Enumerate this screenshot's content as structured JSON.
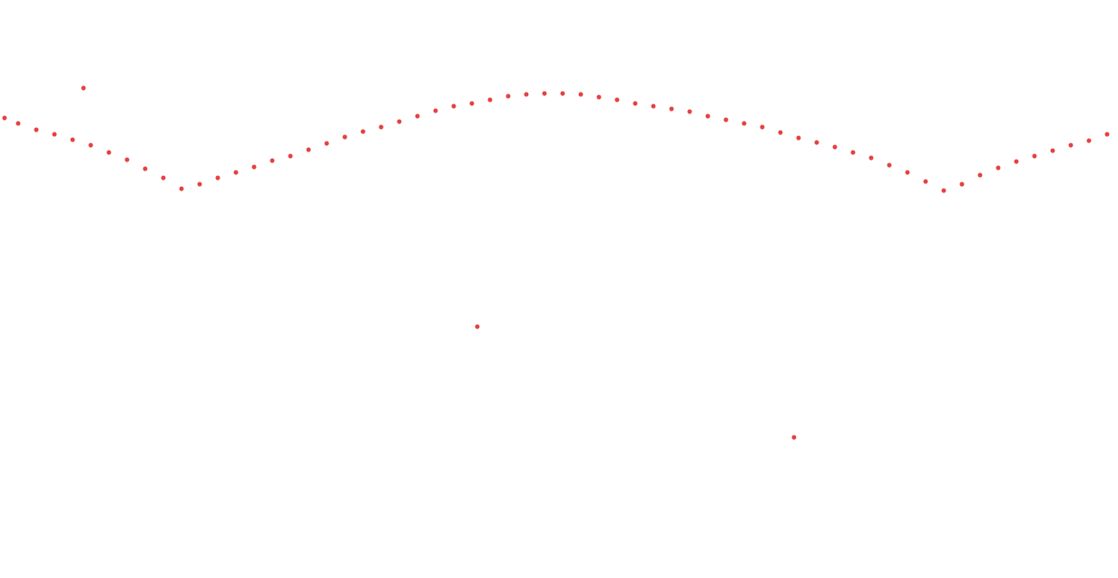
{
  "chart_data": {
    "type": "scatter",
    "color": "#e01010",
    "marker": "circle",
    "x": [
      5,
      20,
      40,
      60,
      80,
      92,
      100,
      120,
      140,
      160,
      180,
      200,
      220,
      240,
      260,
      280,
      300,
      320,
      340,
      360,
      380,
      400,
      420,
      440,
      460,
      480,
      500,
      520,
      526,
      540,
      560,
      580,
      600,
      620,
      640,
      660,
      680,
      700,
      720,
      740,
      760,
      780,
      800,
      820,
      840,
      860,
      875,
      880,
      900,
      920,
      940,
      960,
      980,
      1000,
      1020,
      1040,
      1060,
      1080,
      1100,
      1120,
      1140,
      1160,
      1180,
      1200,
      1220
    ],
    "values": [
      130,
      136,
      143,
      148,
      154,
      97,
      160,
      168,
      176,
      186,
      196,
      208,
      203,
      196,
      190,
      184,
      177,
      172,
      165,
      158,
      151,
      145,
      140,
      134,
      128,
      122,
      117,
      114,
      360,
      110,
      106,
      104,
      103,
      103,
      104,
      107,
      110,
      114,
      117,
      120,
      123,
      128,
      132,
      136,
      140,
      146,
      482,
      152,
      157,
      162,
      168,
      174,
      182,
      190,
      200,
      210,
      203,
      193,
      185,
      178,
      172,
      166,
      160,
      155,
      148
    ],
    "xlim": [
      0,
      1232
    ],
    "ylim": [
      0,
      637
    ],
    "grid": false,
    "tick_labels": false
  }
}
